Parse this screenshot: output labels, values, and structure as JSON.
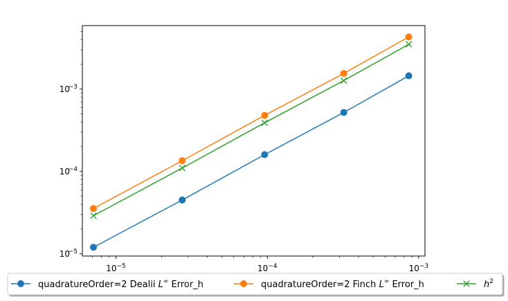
{
  "chart_data": {
    "type": "line",
    "xscale": "log",
    "yscale": "log",
    "xlim": [
      6e-06,
      0.0011
    ],
    "ylim": [
      9.4e-06,
      0.0059
    ],
    "grid": false,
    "legend_placement": "bottom",
    "x": [
      7.1e-06,
      2.74e-05,
      9.6e-05,
      0.00032,
      0.00086
    ],
    "x_ticks": [
      {
        "value": 1e-05,
        "base": "10",
        "exp": "−5"
      },
      {
        "value": 0.0001,
        "base": "10",
        "exp": "−4"
      },
      {
        "value": 0.001,
        "base": "10",
        "exp": "−3"
      }
    ],
    "y_ticks": [
      {
        "value": 1e-05,
        "base": "10",
        "exp": "−5"
      },
      {
        "value": 0.0001,
        "base": "10",
        "exp": "−4"
      },
      {
        "value": 0.001,
        "base": "10",
        "exp": "−3"
      }
    ],
    "series": [
      {
        "name": "quadratureOrder=2 Dealii L∞ Error_h",
        "label_prefix": "quadratureOrder=2 Dealii ",
        "label_math": "L",
        "label_sup": "∞",
        "label_suffix": " Error_h",
        "color": "#1f77b4",
        "marker": "circle",
        "values": [
          1.2e-05,
          4.5e-05,
          0.00016,
          0.00052,
          0.00145
        ]
      },
      {
        "name": "quadratureOrder=2 Finch L∞ Error_h",
        "label_prefix": "quadratureOrder=2 Finch ",
        "label_math": "L",
        "label_sup": "∞",
        "label_suffix": " Error_h",
        "color": "#ff7f0e",
        "marker": "circle",
        "values": [
          3.55e-05,
          0.000135,
          0.00048,
          0.00155,
          0.0043
        ]
      },
      {
        "name": "h2",
        "label_prefix": "",
        "label_math": "h",
        "label_sup": "2",
        "label_suffix": "",
        "color": "#2ca02c",
        "marker": "x",
        "values": [
          2.9e-05,
          0.00011,
          0.00039,
          0.00127,
          0.0035
        ]
      }
    ]
  }
}
